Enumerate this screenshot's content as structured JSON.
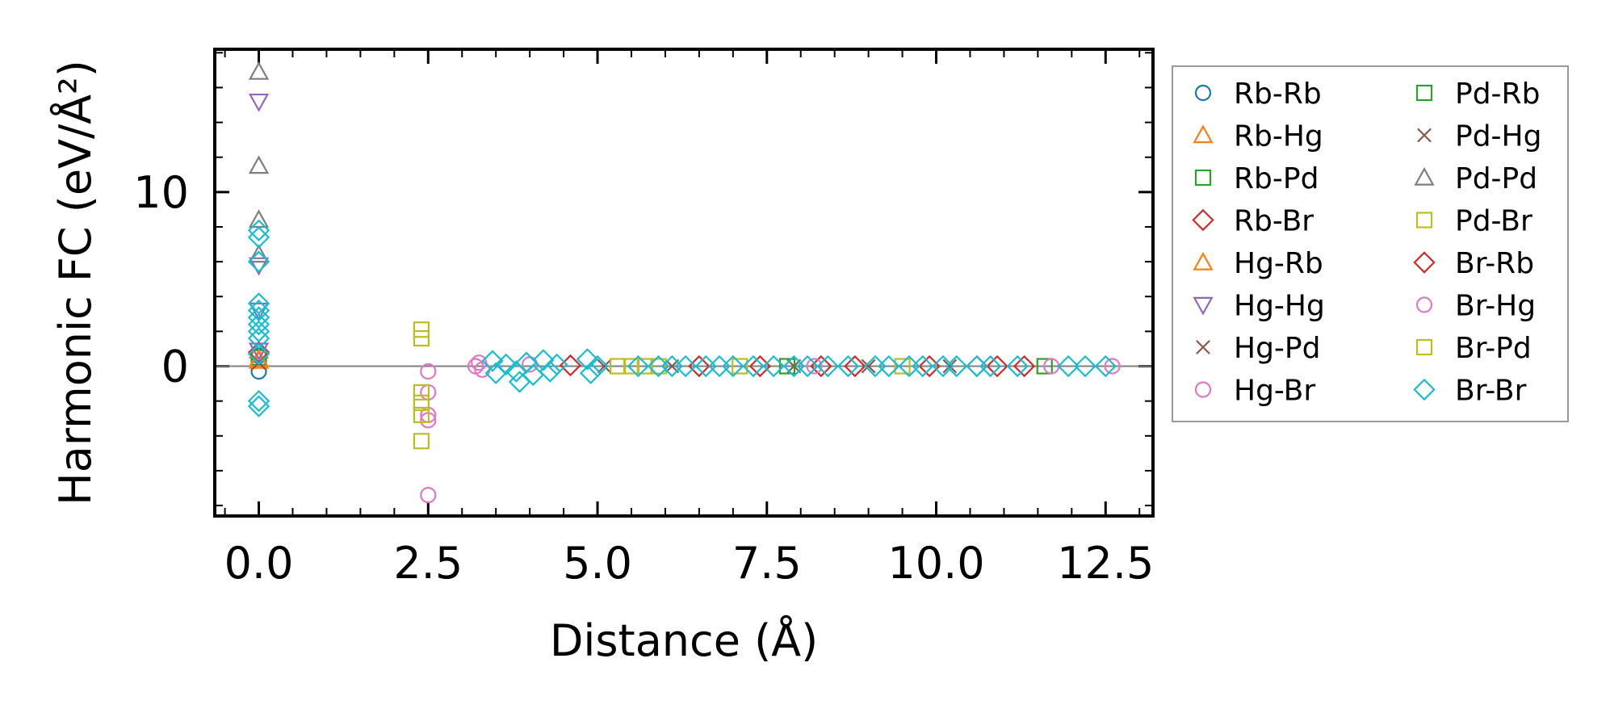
{
  "chart_data": {
    "type": "scatter",
    "xlabel": "Distance (Å)",
    "ylabel": "Harmonic FC (eV/Å²)",
    "xlim": [
      -0.65,
      13.2
    ],
    "ylim": [
      -8.6,
      18.2
    ],
    "x_ticks": [
      0.0,
      2.5,
      5.0,
      7.5,
      10.0,
      12.5
    ],
    "x_tick_labels": [
      "0.0",
      "2.5",
      "5.0",
      "7.5",
      "10.0",
      "12.5"
    ],
    "y_ticks": [
      0,
      10
    ],
    "y_tick_labels": [
      "0",
      "10"
    ],
    "x_minor_step": 0.5,
    "y_minor_step": 2,
    "zero_line": true,
    "grid": false,
    "legend_position": "outside-right",
    "legend_columns": 2,
    "series": [
      {
        "name": "Rb-Rb",
        "marker": "circle",
        "color": "#1f77b4",
        "points": [
          [
            0,
            -0.3
          ],
          [
            0,
            0.6
          ]
        ]
      },
      {
        "name": "Rb-Hg",
        "marker": "triangle-up",
        "color": "#ff7f0e",
        "points": [
          [
            0,
            0.9
          ],
          [
            0,
            0.3
          ]
        ]
      },
      {
        "name": "Rb-Pd",
        "marker": "square",
        "color": "#2ca02c",
        "points": [
          [
            0,
            0.5
          ]
        ]
      },
      {
        "name": "Rb-Br",
        "marker": "diamond",
        "color": "#d62728",
        "points": [
          [
            0,
            0.8
          ],
          [
            4.6,
            0.05
          ],
          [
            7.4,
            0
          ],
          [
            8.3,
            0
          ],
          [
            9.9,
            0
          ],
          [
            10.9,
            0
          ],
          [
            11.3,
            0
          ]
        ]
      },
      {
        "name": "Hg-Rb",
        "marker": "triangle-up",
        "color": "#ff7f0e",
        "points": [
          [
            0,
            0.4
          ]
        ]
      },
      {
        "name": "Hg-Hg",
        "marker": "triangle-down",
        "color": "#9467bd",
        "points": [
          [
            0,
            15.2
          ],
          [
            0,
            5.8
          ],
          [
            0,
            0.9
          ],
          [
            0,
            3.2
          ]
        ]
      },
      {
        "name": "Hg-Pd",
        "marker": "x",
        "color": "#8c564b",
        "points": [
          [
            0,
            0.2
          ],
          [
            5.1,
            0
          ],
          [
            7.9,
            0
          ],
          [
            10.2,
            0
          ]
        ]
      },
      {
        "name": "Hg-Br",
        "marker": "circle",
        "color": "#e377c2",
        "points": [
          [
            2.5,
            -0.3
          ],
          [
            2.5,
            -1.5
          ],
          [
            2.5,
            -2.8
          ],
          [
            2.5,
            -3.1
          ],
          [
            2.5,
            -7.4
          ],
          [
            3.2,
            0
          ],
          [
            3.25,
            0.2
          ],
          [
            3.3,
            -0.2
          ]
        ]
      },
      {
        "name": "Pd-Rb",
        "marker": "square",
        "color": "#2ca02c",
        "points": [
          [
            11.6,
            0
          ],
          [
            7.8,
            0
          ]
        ]
      },
      {
        "name": "Pd-Hg",
        "marker": "x",
        "color": "#8c564b",
        "points": [
          [
            6.1,
            0
          ],
          [
            9.0,
            0
          ]
        ]
      },
      {
        "name": "Pd-Pd",
        "marker": "triangle-up",
        "color": "#7f7f7f",
        "points": [
          [
            0,
            16.9
          ],
          [
            0,
            11.5
          ],
          [
            0,
            8.4
          ],
          [
            0,
            6.4
          ]
        ]
      },
      {
        "name": "Pd-Br",
        "marker": "square",
        "color": "#bcbd22",
        "points": [
          [
            2.4,
            2.1
          ],
          [
            2.4,
            1.6
          ],
          [
            2.4,
            -1.5
          ],
          [
            2.4,
            -2.1
          ],
          [
            2.4,
            -2.8
          ],
          [
            2.4,
            -4.3
          ],
          [
            5.3,
            0
          ],
          [
            5.5,
            0
          ],
          [
            5.7,
            0
          ]
        ]
      },
      {
        "name": "Br-Rb",
        "marker": "diamond",
        "color": "#d62728",
        "points": [
          [
            6.5,
            0
          ],
          [
            8.8,
            0
          ],
          [
            10.6,
            0
          ]
        ]
      },
      {
        "name": "Br-Hg",
        "marker": "circle",
        "color": "#e377c2",
        "points": [
          [
            12.6,
            0
          ],
          [
            11.7,
            0
          ],
          [
            8.2,
            0
          ],
          [
            4.0,
            0.1
          ]
        ]
      },
      {
        "name": "Br-Pd",
        "marker": "square",
        "color": "#bcbd22",
        "points": [
          [
            5.9,
            0
          ],
          [
            7.1,
            0
          ],
          [
            9.5,
            0
          ]
        ]
      },
      {
        "name": "Br-Br",
        "marker": "diamond",
        "color": "#17becf",
        "points": [
          [
            0,
            7.8
          ],
          [
            0,
            7.4
          ],
          [
            0,
            6.0
          ],
          [
            0,
            3.6
          ],
          [
            0,
            3.2
          ],
          [
            0,
            2.8
          ],
          [
            0,
            2.4
          ],
          [
            0,
            2.0
          ],
          [
            0,
            1.6
          ],
          [
            0,
            0.7
          ],
          [
            0,
            -2.0
          ],
          [
            0,
            -2.3
          ],
          [
            3.45,
            0.3
          ],
          [
            3.5,
            -0.4
          ],
          [
            3.65,
            0.1
          ],
          [
            3.8,
            -0.3
          ],
          [
            3.85,
            -0.9
          ],
          [
            3.95,
            0.2
          ],
          [
            4.05,
            -0.5
          ],
          [
            4.2,
            0.35
          ],
          [
            4.3,
            -0.3
          ],
          [
            4.4,
            0.1
          ],
          [
            4.85,
            0.4
          ],
          [
            4.9,
            -0.4
          ],
          [
            5.0,
            0
          ],
          [
            5.6,
            0
          ],
          [
            5.9,
            0
          ],
          [
            6.1,
            0
          ],
          [
            6.3,
            0
          ],
          [
            6.6,
            0
          ],
          [
            6.8,
            0
          ],
          [
            7.0,
            0
          ],
          [
            7.3,
            0
          ],
          [
            7.6,
            0
          ],
          [
            7.9,
            0
          ],
          [
            8.1,
            0
          ],
          [
            8.4,
            0
          ],
          [
            8.7,
            0
          ],
          [
            9.1,
            0
          ],
          [
            9.3,
            0
          ],
          [
            9.6,
            0
          ],
          [
            9.8,
            0
          ],
          [
            10.1,
            0
          ],
          [
            10.3,
            0
          ],
          [
            10.6,
            0
          ],
          [
            10.8,
            0
          ],
          [
            11.2,
            0
          ],
          [
            11.95,
            0
          ],
          [
            12.2,
            0
          ],
          [
            12.5,
            0
          ]
        ]
      }
    ]
  }
}
